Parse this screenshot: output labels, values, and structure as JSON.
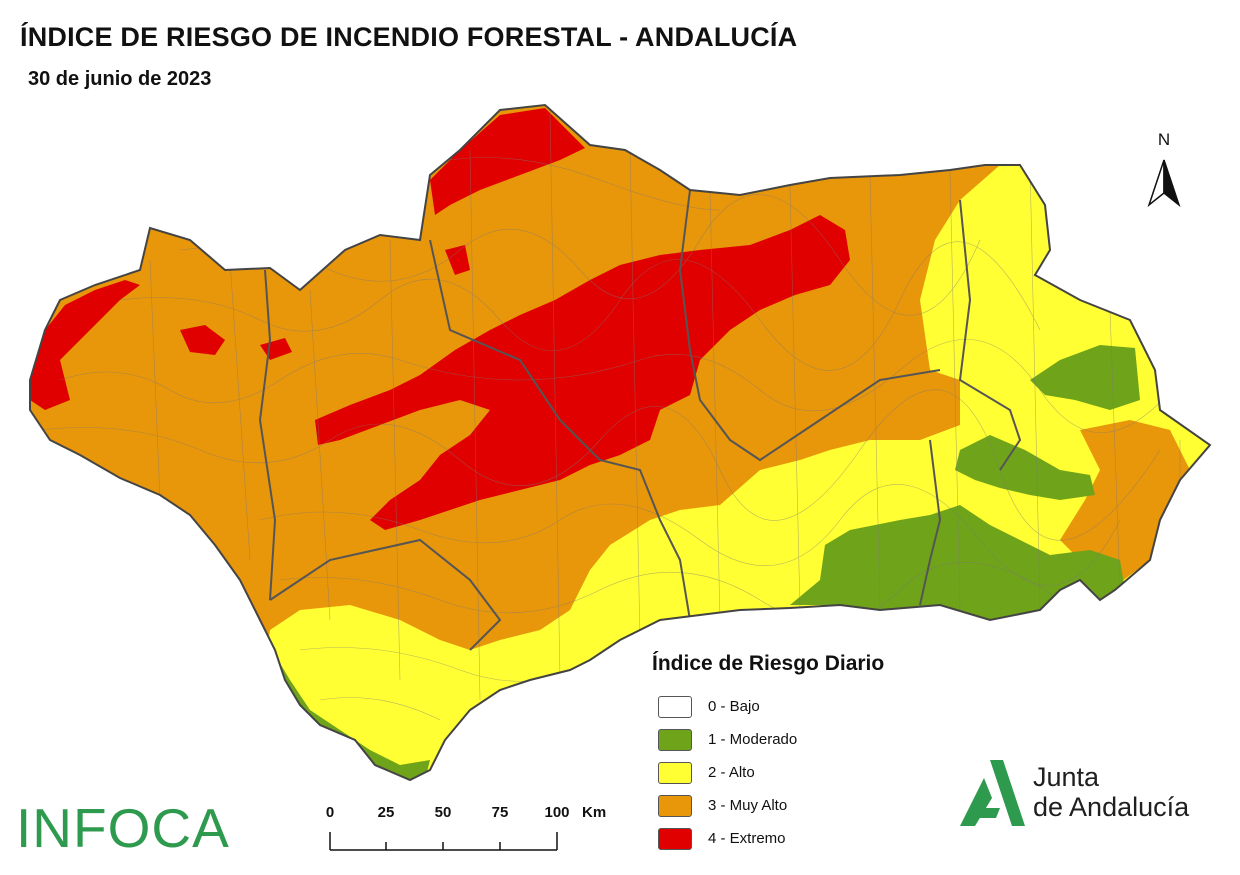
{
  "header": {
    "title": "ÍNDICE DE RIESGO DE INCENDIO FORESTAL - ANDALUCÍA",
    "date": "30 de junio de 2023"
  },
  "legend": {
    "title": "Índice de Riesgo Diario",
    "items": [
      {
        "label": "0 - Bajo",
        "color": "#ffffff"
      },
      {
        "label": "1 - Moderado",
        "color": "#6fa31a"
      },
      {
        "label": "2 - Alto",
        "color": "#ffff33"
      },
      {
        "label": "3 - Muy Alto",
        "color": "#e8960a"
      },
      {
        "label": "4 - Extremo",
        "color": "#e00000"
      }
    ]
  },
  "north_arrow": {
    "label": "N"
  },
  "scale_bar": {
    "ticks": [
      "0",
      "25",
      "50",
      "75",
      "100"
    ],
    "unit": "Km"
  },
  "logos": {
    "infoca": "INFOCA",
    "junta_line1": "Junta",
    "junta_line2": "de Andalucía",
    "junta_color": "#2e9a4e"
  }
}
